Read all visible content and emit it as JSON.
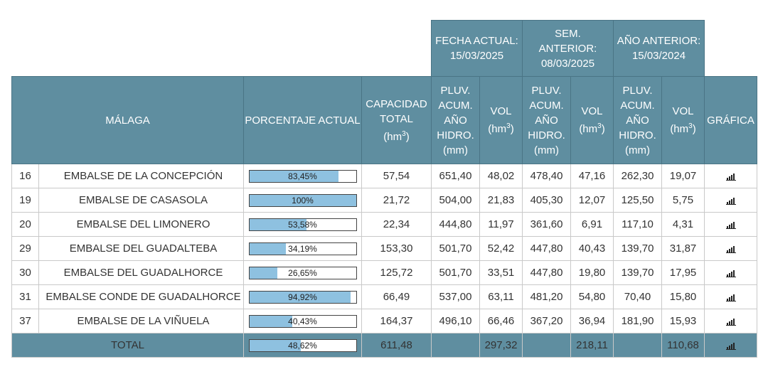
{
  "header": {
    "region": "MÁLAGA",
    "porcentaje": "PORCENTAJE ACTUAL",
    "capacidad": [
      "CAPACIDAD",
      "TOTAL",
      "(hm",
      "3",
      ")"
    ],
    "group_actual": [
      "FECHA ACTUAL:",
      "15/03/2025"
    ],
    "group_sem": [
      "SEM.",
      "ANTERIOR:",
      "08/03/2025"
    ],
    "group_anio": [
      "AÑO ANTERIOR:",
      "15/03/2024"
    ],
    "pluv": [
      "PLUV.",
      "ACUM.",
      "AÑO",
      "HIDRO.",
      "(mm)"
    ],
    "vol": [
      "VOL",
      "(hm",
      "3",
      ")"
    ],
    "grafica": "GRÁFICA"
  },
  "rows": [
    {
      "id": "16",
      "name": "EMBALSE DE LA CONCEPCIÓN",
      "pct": "83,45%",
      "fill": 0.8345,
      "cap": "57,54",
      "pluv_act": "651,40",
      "vol_act": "48,02",
      "pluv_sem": "478,40",
      "vol_sem": "47,16",
      "pluv_ant": "262,30",
      "vol_ant": "19,07",
      "chart_icon": "bar-chart-icon"
    },
    {
      "id": "19",
      "name": "EMBALSE DE CASASOLA",
      "pct": "100%",
      "fill": 1.0,
      "cap": "21,72",
      "pluv_act": "504,00",
      "vol_act": "21,83",
      "pluv_sem": "405,30",
      "vol_sem": "12,07",
      "pluv_ant": "125,50",
      "vol_ant": "5,75",
      "chart_icon": "bar-chart-icon"
    },
    {
      "id": "20",
      "name": "EMBALSE DEL LIMONERO",
      "pct": "53,58%",
      "fill": 0.5358,
      "cap": "22,34",
      "pluv_act": "444,80",
      "vol_act": "11,97",
      "pluv_sem": "361,60",
      "vol_sem": "6,91",
      "pluv_ant": "117,10",
      "vol_ant": "4,31",
      "chart_icon": "bar-chart-icon"
    },
    {
      "id": "29",
      "name": "EMBALSE DEL GUADALTEBA",
      "pct": "34,19%",
      "fill": 0.3419,
      "cap": "153,30",
      "pluv_act": "501,70",
      "vol_act": "52,42",
      "pluv_sem": "447,80",
      "vol_sem": "40,43",
      "pluv_ant": "139,70",
      "vol_ant": "31,87",
      "chart_icon": "bar-chart-icon"
    },
    {
      "id": "30",
      "name": "EMBALSE DEL GUADALHORCE",
      "pct": "26,65%",
      "fill": 0.2665,
      "cap": "125,72",
      "pluv_act": "501,70",
      "vol_act": "33,51",
      "pluv_sem": "447,80",
      "vol_sem": "19,80",
      "pluv_ant": "139,70",
      "vol_ant": "17,95",
      "chart_icon": "bar-chart-icon"
    },
    {
      "id": "31",
      "name": "EMBALSE CONDE DE GUADALHORCE",
      "pct": "94,92%",
      "fill": 0.9492,
      "cap": "66,49",
      "pluv_act": "537,00",
      "vol_act": "63,11",
      "pluv_sem": "481,20",
      "vol_sem": "54,80",
      "pluv_ant": "70,40",
      "vol_ant": "15,80",
      "chart_icon": "bar-chart-icon"
    },
    {
      "id": "37",
      "name": "EMBALSE DE LA VIÑUELA",
      "pct": "40,43%",
      "fill": 0.4043,
      "cap": "164,37",
      "pluv_act": "496,10",
      "vol_act": "66,46",
      "pluv_sem": "367,20",
      "vol_sem": "36,94",
      "pluv_ant": "181,90",
      "vol_ant": "15,93",
      "chart_icon": "bar-chart-icon"
    }
  ],
  "total": {
    "label": "TOTAL",
    "pct": "48,62%",
    "fill": 0.4862,
    "cap": "611,48",
    "pluv_act": "",
    "vol_act": "297,32",
    "pluv_sem": "",
    "vol_sem": "218,11",
    "pluv_ant": "",
    "vol_ant": "110,68",
    "chart_icon": "bar-chart-icon"
  },
  "colors": {
    "header_bg": "#5f8ea0",
    "bar_fill": "#8ec1e0"
  }
}
